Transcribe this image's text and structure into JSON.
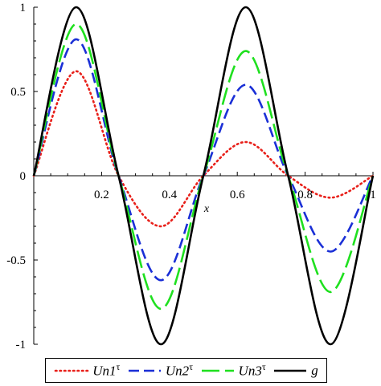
{
  "chart_data": {
    "type": "line",
    "title": "",
    "xlabel": "x",
    "ylabel": "",
    "xlim": [
      0,
      1
    ],
    "ylim": [
      -1,
      1
    ],
    "x_ticks": [
      "0.2",
      "0.4",
      "0.6",
      "0.8",
      "1"
    ],
    "y_ticks": [
      "1",
      "0.5",
      "0",
      "-0.5",
      "-1"
    ],
    "grid": false,
    "legend": "bottom",
    "x": [
      0,
      0.125,
      0.25,
      0.375,
      0.5,
      0.625,
      0.75,
      0.875,
      1
    ],
    "series": [
      {
        "name": "Un1",
        "superscript": "τ",
        "color": "#e8201a",
        "dash": "dotted",
        "values": [
          0,
          0.62,
          0,
          -0.3,
          0,
          0.2,
          0,
          -0.13,
          0
        ]
      },
      {
        "name": "Un2",
        "superscript": "τ",
        "color": "#1a2fd6",
        "dash": "dashed",
        "values": [
          0,
          0.81,
          0,
          -0.62,
          0,
          0.54,
          0,
          -0.45,
          0
        ]
      },
      {
        "name": "Un3",
        "superscript": "τ",
        "color": "#1fe01f",
        "dash": "longdash",
        "values": [
          0,
          0.9,
          0,
          -0.79,
          0,
          0.74,
          0,
          -0.69,
          0
        ]
      },
      {
        "name": "g",
        "superscript": "",
        "color": "#000000",
        "dash": "solid",
        "values": [
          0,
          1,
          0,
          -1,
          0,
          1,
          0,
          -1,
          0
        ]
      }
    ]
  }
}
